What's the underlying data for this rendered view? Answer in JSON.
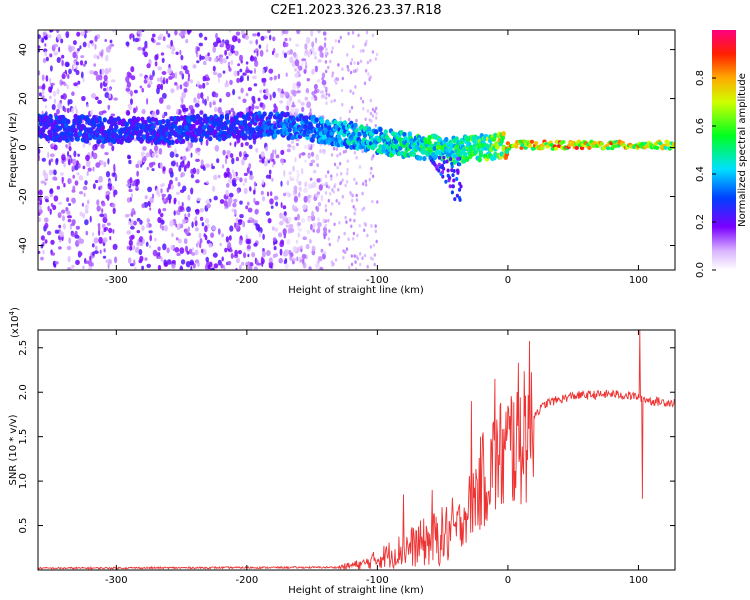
{
  "title": "C2E1.2023.326.23.37.R18",
  "chart_data": [
    {
      "type": "heatmap",
      "xlabel": "Height of straight line (km)",
      "ylabel": "Frequency (Hz)",
      "xlim": [
        -360,
        128
      ],
      "ylim": [
        -50,
        48
      ],
      "x_ticks": [
        "-300",
        "-200",
        "-100",
        "0",
        "100"
      ],
      "y_ticks": [
        "40",
        "20",
        "0",
        "-20",
        "-40"
      ],
      "colorbar": {
        "label": "Normalized spectral amplitude",
        "range": [
          0,
          1
        ],
        "ticks": [
          "0.0",
          "0.2",
          "0.4",
          "0.6",
          "0.8"
        ]
      },
      "ridge": [
        {
          "x": -340,
          "y": 8
        },
        {
          "x": -300,
          "y": 7
        },
        {
          "x": -260,
          "y": 7
        },
        {
          "x": -200,
          "y": 9
        },
        {
          "x": -170,
          "y": 9
        },
        {
          "x": -140,
          "y": 7
        },
        {
          "x": -120,
          "y": 5
        },
        {
          "x": -100,
          "y": 3
        },
        {
          "x": -80,
          "y": 1
        },
        {
          "x": -60,
          "y": 0
        },
        {
          "x": -40,
          "y": -1
        },
        {
          "x": -20,
          "y": 0
        },
        {
          "x": 0,
          "y": 1
        },
        {
          "x": 50,
          "y": 1
        },
        {
          "x": 90,
          "y": 1
        },
        {
          "x": 128,
          "y": 1
        }
      ],
      "ridge_amplitude": [
        {
          "x": -340,
          "v": 0.3
        },
        {
          "x": -200,
          "v": 0.3
        },
        {
          "x": -120,
          "v": 0.45
        },
        {
          "x": -60,
          "v": 0.55
        },
        {
          "x": -20,
          "v": 0.6
        },
        {
          "x": 0,
          "v": 0.8
        },
        {
          "x": 50,
          "v": 0.85
        },
        {
          "x": 90,
          "v": 0.8
        },
        {
          "x": 128,
          "v": 0.7
        }
      ]
    },
    {
      "type": "line",
      "xlabel": "Height of straight line (km)",
      "ylabel": "SNR (10 * v/v)",
      "yscale_label": "(x10",
      "yscale_exp": "4",
      "yscale_close": ")",
      "xlim": [
        -360,
        128
      ],
      "ylim": [
        0,
        2.7
      ],
      "x_ticks": [
        "-300",
        "-200",
        "-100",
        "0",
        "100"
      ],
      "y_ticks": [
        "0.5",
        "1.0",
        "1.5",
        "2.0",
        "2.5"
      ],
      "color": "#ee3333",
      "envelope": [
        {
          "x": -360,
          "y": 0.02
        },
        {
          "x": -130,
          "y": 0.03
        },
        {
          "x": -110,
          "y": 0.07
        },
        {
          "x": -90,
          "y": 0.18
        },
        {
          "x": -70,
          "y": 0.28
        },
        {
          "x": -50,
          "y": 0.38
        },
        {
          "x": -40,
          "y": 0.45
        },
        {
          "x": -30,
          "y": 0.7
        },
        {
          "x": -20,
          "y": 1.0
        },
        {
          "x": -10,
          "y": 1.2
        },
        {
          "x": 0,
          "y": 1.35
        },
        {
          "x": 10,
          "y": 1.55
        },
        {
          "x": 20,
          "y": 1.75
        },
        {
          "x": 30,
          "y": 1.88
        },
        {
          "x": 50,
          "y": 1.96
        },
        {
          "x": 80,
          "y": 1.98
        },
        {
          "x": 100,
          "y": 1.95
        },
        {
          "x": 110,
          "y": 1.9
        },
        {
          "x": 128,
          "y": 1.88
        }
      ],
      "spikes": [
        {
          "x": -80,
          "y": 0.85
        },
        {
          "x": -58,
          "y": 0.9
        },
        {
          "x": -28,
          "y": 1.9
        },
        {
          "x": -10,
          "y": 2.15
        },
        {
          "x": 101,
          "y": 2.7
        },
        {
          "x": 103,
          "y": 0.8
        }
      ]
    }
  ]
}
